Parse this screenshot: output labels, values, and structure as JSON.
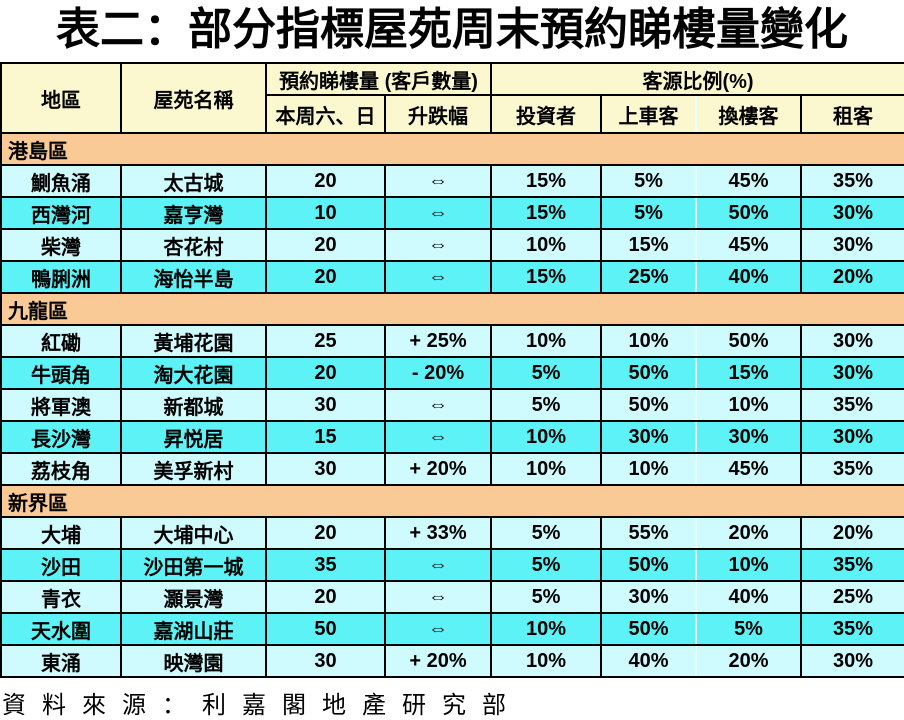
{
  "title": "表二：部分指標屋苑周末預約睇樓量變化",
  "footer": {
    "source": "資料來源：利嘉閣地產研究部"
  },
  "colors": {
    "header_bg": "#FBF8D0",
    "section_bg": "#FACA96",
    "row_light_bg": "#D0FBFE",
    "row_dark_bg": "#5DF2F5",
    "border": "#000000",
    "light_divider": "#EAFEFF"
  },
  "table": {
    "header": {
      "district": "地區",
      "estate": "屋苑名稱",
      "bookings_group": "預約睇樓量 (客戶數量)",
      "bookings_day": "本周六、日",
      "bookings_change": "升跌幅",
      "source_group": "客源比例(%)",
      "investor": "投資者",
      "first_time_buyer": "上車客",
      "upgrader": "換樓客",
      "tenant": "租客"
    },
    "unchanged_symbol": "⇔",
    "sections": [
      {
        "name": "港島區",
        "rows": [
          [
            "鰂魚涌",
            "太古城",
            "20",
            "⇔",
            "15%",
            "5%",
            "45%",
            "35%"
          ],
          [
            "西灣河",
            "嘉亨灣",
            "10",
            "⇔",
            "15%",
            "5%",
            "50%",
            "30%"
          ],
          [
            "柴灣",
            "杏花村",
            "20",
            "⇔",
            "10%",
            "15%",
            "45%",
            "30%"
          ],
          [
            "鴨脷洲",
            "海怡半島",
            "20",
            "⇔",
            "15%",
            "25%",
            "40%",
            "20%"
          ]
        ]
      },
      {
        "name": "九龍區",
        "rows": [
          [
            "紅磡",
            "黃埔花園",
            "25",
            "+ 25%",
            "10%",
            "10%",
            "50%",
            "30%"
          ],
          [
            "牛頭角",
            "淘大花園",
            "20",
            "- 20%",
            "5%",
            "50%",
            "15%",
            "30%"
          ],
          [
            "將軍澳",
            "新都城",
            "30",
            "⇔",
            "5%",
            "50%",
            "10%",
            "35%"
          ],
          [
            "長沙灣",
            "昇悦居",
            "15",
            "⇔",
            "10%",
            "30%",
            "30%",
            "30%"
          ],
          [
            "荔枝角",
            "美孚新村",
            "30",
            "+ 20%",
            "10%",
            "10%",
            "45%",
            "35%"
          ]
        ]
      },
      {
        "name": "新界區",
        "rows": [
          [
            "大埔",
            "大埔中心",
            "20",
            "+ 33%",
            "5%",
            "55%",
            "20%",
            "20%"
          ],
          [
            "沙田",
            "沙田第一城",
            "35",
            "⇔",
            "5%",
            "50%",
            "10%",
            "35%"
          ],
          [
            "青衣",
            "灝景灣",
            "20",
            "⇔",
            "5%",
            "30%",
            "40%",
            "25%"
          ],
          [
            "天水圍",
            "嘉湖山莊",
            "50",
            "⇔",
            "10%",
            "50%",
            "5%",
            "35%"
          ],
          [
            "東涌",
            "映灣園",
            "30",
            "+ 20%",
            "10%",
            "40%",
            "20%",
            "30%"
          ]
        ]
      }
    ]
  }
}
